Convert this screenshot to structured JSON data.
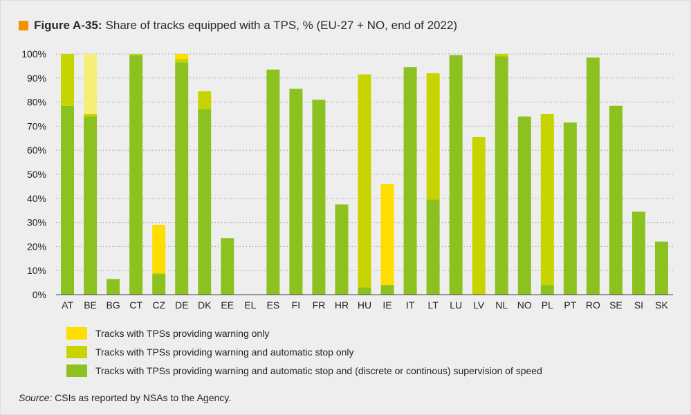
{
  "figure": {
    "title_prefix": "Figure A-35:",
    "title_text": "Share of tracks equipped with a TPS, % (EU-27 + NO, end of 2022)",
    "accent_color": "#f39200"
  },
  "source": {
    "label": "Source:",
    "text": "CSIs as reported by NSAs to the Agency."
  },
  "chart_data": {
    "type": "bar",
    "stacked": true,
    "title": "Share of tracks equipped with a TPS, % (EU-27 + NO, end of 2022)",
    "ylim": [
      0,
      100
    ],
    "yticks": [
      "0%",
      "10%",
      "20%",
      "30%",
      "40%",
      "50%",
      "60%",
      "70%",
      "80%",
      "90%",
      "100%"
    ],
    "grid": "horizontal-dotted",
    "legend_position": "bottom",
    "categories": [
      "AT",
      "BE",
      "BG",
      "CT",
      "CZ",
      "DE",
      "DK",
      "EE",
      "EL",
      "ES",
      "FI",
      "FR",
      "HR",
      "HU",
      "IE",
      "IT",
      "LT",
      "LU",
      "LV",
      "NL",
      "NO",
      "PL",
      "PT",
      "RO",
      "SE",
      "SI",
      "SK"
    ],
    "series": [
      {
        "name": "Tracks with TPSs providing warning and automatic stop and (discrete or continous) supervision of speed",
        "color": "#8cc21f",
        "values": [
          78.5,
          74,
          6.5,
          99.5,
          8.5,
          96.5,
          77,
          23.5,
          0,
          93.5,
          85.5,
          81,
          37.5,
          3,
          4,
          94.5,
          39.5,
          99.5,
          0,
          99,
          74,
          4,
          71.5,
          98.5,
          78.5,
          34.5,
          22
        ]
      },
      {
        "name": "Tracks with TPSs providing warning and automatic stop only",
        "color": "#c8d400",
        "values": [
          21.5,
          1,
          0,
          0.5,
          0.5,
          1.5,
          7.5,
          0,
          0,
          0,
          0,
          0,
          0,
          88.5,
          0,
          0,
          52.5,
          0,
          65.5,
          1,
          0,
          71,
          0,
          0,
          0,
          0,
          0
        ]
      },
      {
        "name": "Tracks with TPSs providing warning only",
        "color": "#fedd00",
        "values": [
          0,
          25,
          0,
          0,
          20,
          2,
          0,
          0,
          0,
          0,
          0,
          0,
          0,
          0,
          42,
          0,
          0,
          0,
          0,
          0,
          0,
          0,
          0,
          0,
          0,
          0,
          0
        ]
      }
    ],
    "be_warning_only_color": "#f6ee78"
  }
}
